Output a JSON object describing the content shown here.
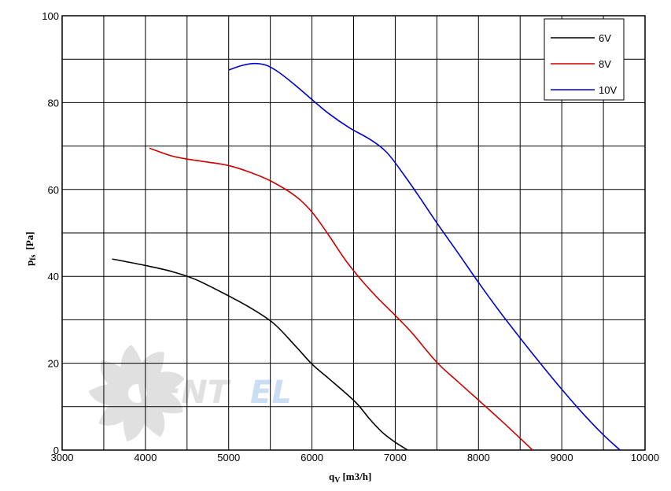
{
  "chart_data": {
    "type": "line",
    "xlabel": "q",
    "xlabel_sub": "V",
    "xlabel_unit": "[m3/h]",
    "ylabel": "p",
    "ylabel_sub": "fs",
    "ylabel_unit": "[Pa]",
    "xlim": [
      3000,
      10000
    ],
    "ylim": [
      0,
      100
    ],
    "x_ticks": [
      3000,
      4000,
      5000,
      6000,
      7000,
      8000,
      9000,
      10000
    ],
    "y_ticks": [
      0,
      20,
      40,
      60,
      80,
      100
    ],
    "x_grid_step": 500,
    "y_grid_step": 10,
    "grid": true,
    "legend_position": "top-right",
    "series": [
      {
        "name": "6V",
        "color": "#000000",
        "points": [
          [
            3600,
            44
          ],
          [
            4000,
            42.5
          ],
          [
            4300,
            41.2
          ],
          [
            4600,
            39.3
          ],
          [
            5000,
            35.5
          ],
          [
            5300,
            32.3
          ],
          [
            5550,
            29
          ],
          [
            5800,
            24
          ],
          [
            6000,
            19.8
          ],
          [
            6200,
            16.5
          ],
          [
            6400,
            13.2
          ],
          [
            6550,
            10.5
          ],
          [
            6700,
            7
          ],
          [
            6850,
            4
          ],
          [
            7000,
            1.8
          ],
          [
            7150,
            0
          ]
        ]
      },
      {
        "name": "8V",
        "color": "#cc0000",
        "points": [
          [
            4050,
            69.5
          ],
          [
            4300,
            67.8
          ],
          [
            4500,
            67
          ],
          [
            4750,
            66.3
          ],
          [
            5000,
            65.5
          ],
          [
            5250,
            64
          ],
          [
            5500,
            62
          ],
          [
            5800,
            58.5
          ],
          [
            6000,
            54.8
          ],
          [
            6200,
            49.5
          ],
          [
            6400,
            43.8
          ],
          [
            6600,
            39
          ],
          [
            6800,
            34.8
          ],
          [
            7000,
            31
          ],
          [
            7200,
            27
          ],
          [
            7500,
            20.2
          ],
          [
            7750,
            15.8
          ],
          [
            8000,
            11.5
          ],
          [
            8300,
            6.3
          ],
          [
            8650,
            0
          ]
        ]
      },
      {
        "name": "10V",
        "color": "#0000cc",
        "points": [
          [
            5000,
            87.5
          ],
          [
            5150,
            88.5
          ],
          [
            5300,
            89
          ],
          [
            5450,
            88.6
          ],
          [
            5600,
            87
          ],
          [
            5800,
            84
          ],
          [
            6000,
            80.7
          ],
          [
            6200,
            77.5
          ],
          [
            6450,
            74.2
          ],
          [
            6700,
            71.5
          ],
          [
            6900,
            68.5
          ],
          [
            7100,
            63.5
          ],
          [
            7300,
            58
          ],
          [
            7500,
            52.3
          ],
          [
            7750,
            45.5
          ],
          [
            8000,
            38.6
          ],
          [
            8250,
            32
          ],
          [
            8500,
            25.8
          ],
          [
            8750,
            19.8
          ],
          [
            9000,
            14
          ],
          [
            9250,
            8.5
          ],
          [
            9500,
            3.5
          ],
          [
            9700,
            0
          ]
        ]
      }
    ]
  },
  "watermark": {
    "text_part1": "VENT",
    "text_part2": "EL",
    "color_gray": "#c8c8c8",
    "color_accent": "#9fc2e8",
    "icon": "fan-icon"
  }
}
